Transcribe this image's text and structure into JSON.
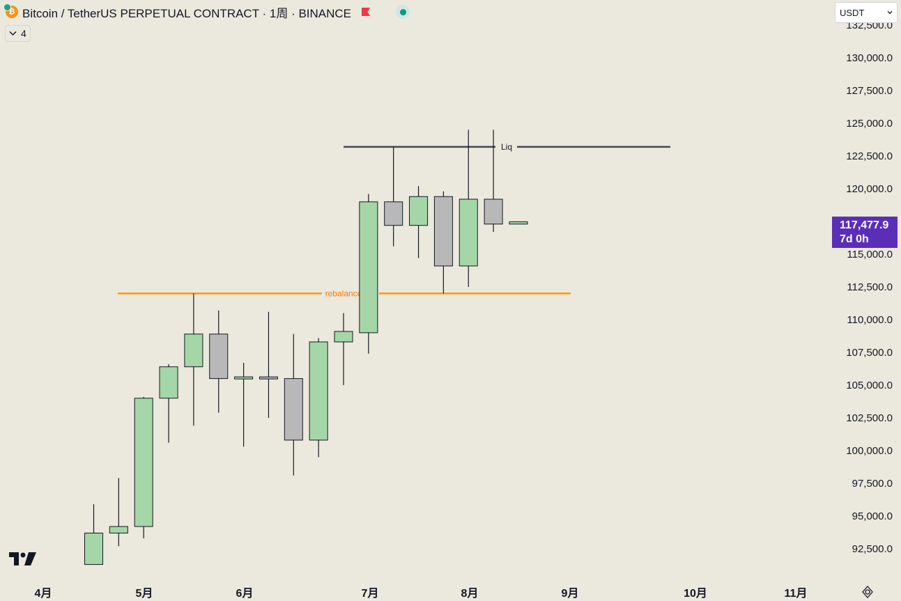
{
  "header": {
    "title": "Bitcoin / TetherUS PERPETUAL CONTRACT · 1周 · BINANCE",
    "collapse_count": "4"
  },
  "currency_select": {
    "value": "USDT"
  },
  "price_axis": {
    "ticks": [
      "132,500.0",
      "130,000.0",
      "127,500.0",
      "125,000.0",
      "122,500.0",
      "120,000.0",
      "115,000.0",
      "112,500.0",
      "110,000.0",
      "107,500.0",
      "105,000.0",
      "102,500.0",
      "100,000.0",
      "97,500.0",
      "95,000.0",
      "92,500.0"
    ],
    "current_price": "117,477.9",
    "countdown": "7d 0h"
  },
  "time_axis": {
    "labels": [
      "4月",
      "5月",
      "6月",
      "7月",
      "8月",
      "9月",
      "10月",
      "11月"
    ]
  },
  "annotations": {
    "liq_label": "Liq",
    "rebalance_label": "rebalance"
  },
  "colors": {
    "up": "#a5d6a7",
    "down": "#b8b8b8",
    "liq_line": "#434651",
    "rebalance_line": "#ff9800",
    "price_label": "#5b2eb8"
  },
  "icons": {
    "logo": "tradingview-logo",
    "settings": "settings-icon",
    "flag": "flag-icon"
  },
  "chart_data": {
    "type": "candlestick",
    "timeframe": "1W",
    "y_axis_ticks": [
      92500,
      95000,
      97500,
      100000,
      102500,
      105000,
      107500,
      110000,
      112500,
      115000,
      120000,
      122500,
      125000,
      127500,
      130000,
      132500
    ],
    "candles": [
      {
        "open": 91300,
        "high": 95900,
        "low": 91300,
        "close": 93700
      },
      {
        "open": 93700,
        "high": 97900,
        "low": 92700,
        "close": 94200
      },
      {
        "open": 94200,
        "high": 104100,
        "low": 93300,
        "close": 104000
      },
      {
        "open": 104000,
        "high": 106600,
        "low": 100600,
        "close": 106400
      },
      {
        "open": 106400,
        "high": 112000,
        "low": 101900,
        "close": 108900
      },
      {
        "open": 108900,
        "high": 110700,
        "low": 102900,
        "close": 105500
      },
      {
        "open": 105500,
        "high": 106700,
        "low": 100300,
        "close": 105600
      },
      {
        "open": 105600,
        "high": 110600,
        "low": 102500,
        "close": 105500
      },
      {
        "open": 105500,
        "high": 108900,
        "low": 98100,
        "close": 100800
      },
      {
        "open": 100800,
        "high": 108600,
        "low": 99500,
        "close": 108300
      },
      {
        "open": 108300,
        "high": 110500,
        "low": 105000,
        "close": 109100
      },
      {
        "open": 109000,
        "high": 119600,
        "low": 107400,
        "close": 119000
      },
      {
        "open": 119000,
        "high": 123200,
        "low": 115600,
        "close": 117200
      },
      {
        "open": 117200,
        "high": 120200,
        "low": 114700,
        "close": 119400
      },
      {
        "open": 119400,
        "high": 119800,
        "low": 112000,
        "close": 114100
      },
      {
        "open": 114100,
        "high": 124500,
        "low": 112500,
        "close": 119200
      },
      {
        "open": 119200,
        "high": 124500,
        "low": 116700,
        "close": 117300
      },
      {
        "open": 117300,
        "high": 117500,
        "low": 117300,
        "close": 117478
      }
    ],
    "horizontal_lines": [
      {
        "label": "Liq",
        "price": 123200
      },
      {
        "label": "rebalance",
        "price": 112000
      }
    ]
  }
}
